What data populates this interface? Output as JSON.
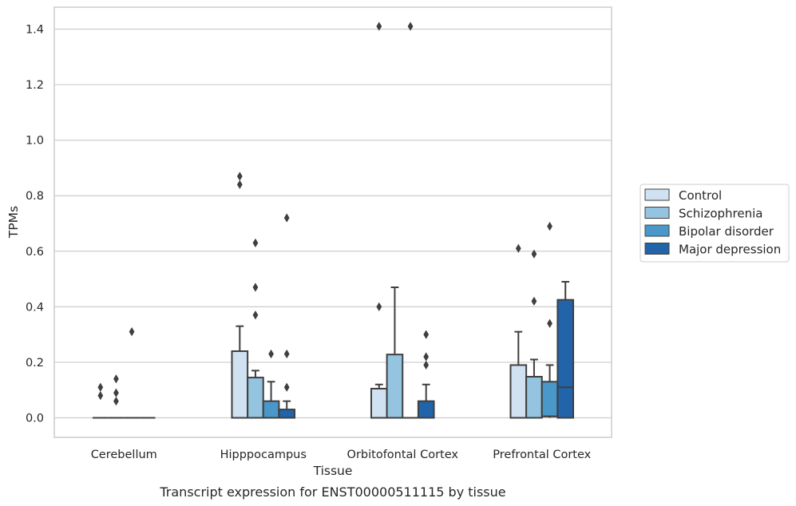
{
  "chart_data": {
    "type": "box",
    "title": "",
    "caption": "Transcript expression for ENST00000511115 by tissue",
    "xlabel": "Tissue",
    "ylabel": "TPMs",
    "ylim": [
      -0.07,
      1.48
    ],
    "yticks": [
      0.0,
      0.2,
      0.4,
      0.6,
      0.8,
      1.0,
      1.2,
      1.4
    ],
    "ytick_labels": [
      "0.0",
      "0.2",
      "0.4",
      "0.6",
      "0.8",
      "1.0",
      "1.2",
      "1.4"
    ],
    "grid": true,
    "legend_position": "right",
    "categories": [
      "Cerebellum",
      "Hipppocampus",
      "Orbitofontal Cortex",
      "Prefrontal Cortex"
    ],
    "series": [
      {
        "name": "Control",
        "color": "#d0e1f2",
        "boxes": [
          {
            "q1": 0,
            "median": 0,
            "q3": 0,
            "whislo": 0,
            "whishi": 0,
            "fliers": [
              0.08,
              0.11
            ]
          },
          {
            "q1": 0,
            "median": 0,
            "q3": 0.24,
            "whislo": 0,
            "whishi": 0.33,
            "fliers": [
              0.84,
              0.87
            ]
          },
          {
            "q1": 0,
            "median": 0,
            "q3": 0.105,
            "whislo": 0,
            "whishi": 0.12,
            "fliers": [
              0.4,
              1.41
            ]
          },
          {
            "q1": 0,
            "median": 0,
            "q3": 0.19,
            "whislo": 0,
            "whishi": 0.31,
            "fliers": [
              0.61
            ]
          }
        ]
      },
      {
        "name": "Schizophrenia",
        "color": "#94c4df",
        "boxes": [
          {
            "q1": 0,
            "median": 0,
            "q3": 0,
            "whislo": 0,
            "whishi": 0,
            "fliers": [
              0.06,
              0.09,
              0.14
            ]
          },
          {
            "q1": 0,
            "median": 0,
            "q3": 0.145,
            "whislo": 0,
            "whishi": 0.17,
            "fliers": [
              0.37,
              0.47,
              0.63
            ]
          },
          {
            "q1": 0,
            "median": 0,
            "q3": 0.228,
            "whislo": 0,
            "whishi": 0.47,
            "fliers": []
          },
          {
            "q1": 0,
            "median": 0,
            "q3": 0.148,
            "whislo": 0,
            "whishi": 0.21,
            "fliers": [
              0.42,
              0.59
            ]
          }
        ]
      },
      {
        "name": "Bipolar disorder",
        "color": "#4a98c9",
        "boxes": [
          {
            "q1": 0,
            "median": 0,
            "q3": 0,
            "whislo": 0,
            "whishi": 0,
            "fliers": [
              0.31
            ]
          },
          {
            "q1": 0,
            "median": 0,
            "q3": 0.06,
            "whislo": 0,
            "whishi": 0.13,
            "fliers": [
              0.23
            ]
          },
          {
            "q1": 0,
            "median": 0,
            "q3": 0,
            "whislo": 0,
            "whishi": 0,
            "fliers": [
              1.41
            ]
          },
          {
            "q1": 0.005,
            "median": 0.005,
            "q3": 0.13,
            "whislo": 0,
            "whishi": 0.19,
            "fliers": [
              0.34,
              0.69
            ]
          }
        ]
      },
      {
        "name": "Major depression",
        "color": "#2164aa",
        "boxes": [
          {
            "q1": 0,
            "median": 0,
            "q3": 0,
            "whislo": 0,
            "whishi": 0,
            "fliers": []
          },
          {
            "q1": 0,
            "median": 0,
            "q3": 0.03,
            "whislo": 0,
            "whishi": 0.06,
            "fliers": [
              0.11,
              0.23,
              0.72
            ]
          },
          {
            "q1": 0,
            "median": 0,
            "q3": 0.06,
            "whislo": 0,
            "whishi": 0.12,
            "fliers": [
              0.19,
              0.22,
              0.3
            ]
          },
          {
            "q1": 0,
            "median": 0.11,
            "q3": 0.425,
            "whislo": 0,
            "whishi": 0.49,
            "fliers": []
          }
        ]
      }
    ]
  }
}
